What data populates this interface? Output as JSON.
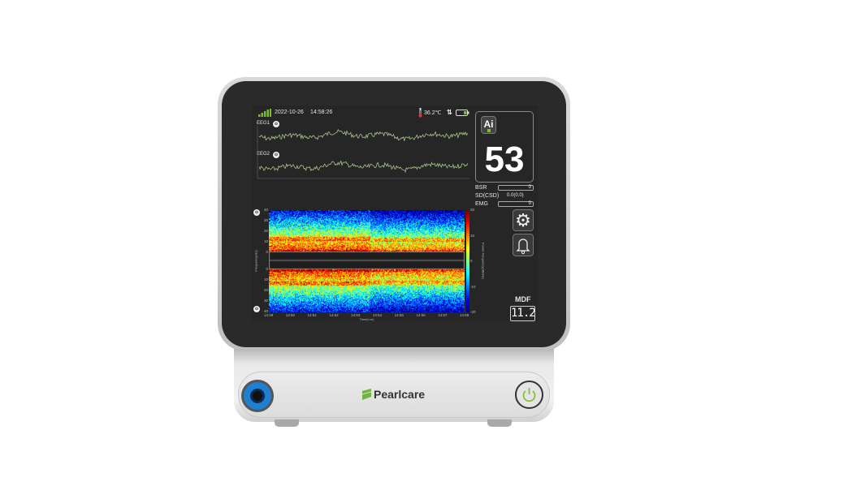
{
  "status_bar": {
    "date": "2022-10-26",
    "time": "14:58:26",
    "temperature": "36.2℃",
    "signal_icon": "signal-bars-icon",
    "battery_icon": "battery-icon"
  },
  "eeg": [
    {
      "label": "EEG1"
    },
    {
      "label": "EEG2"
    }
  ],
  "index_panel": {
    "ai_label": "Ai",
    "value": "53"
  },
  "params": [
    {
      "label": "BSR",
      "value": "0"
    },
    {
      "label": "SD(CSD)",
      "value": "0.0(0.0)"
    },
    {
      "label": "EMG",
      "value": "0"
    }
  ],
  "buttons": {
    "settings_icon": "gear-icon",
    "alarm_icon": "bell-icon"
  },
  "mdf": {
    "label": "MDF",
    "value": "11.2"
  },
  "spectrogram": {
    "y_ticks": [
      "40",
      "30",
      "20",
      "10",
      "0"
    ],
    "y_label": "Frequency(Hz)",
    "x_ticks": [
      "14:49",
      "14:50",
      "14:51",
      "14:52",
      "14:53",
      "14:54",
      "14:55",
      "14:56",
      "14:57",
      "14:58"
    ],
    "x_label": "Time(h:m)",
    "colorbar_ticks": [
      "20",
      "10",
      "0",
      "-10",
      "-20"
    ],
    "colorbar_label": "Power Frequency(dB/Hz)"
  },
  "brand": {
    "name": "Pearlcare"
  },
  "colors": {
    "accent_green": "#7dbb2f",
    "port_blue": "#1f7fd0",
    "wave": "#a9c48a"
  }
}
